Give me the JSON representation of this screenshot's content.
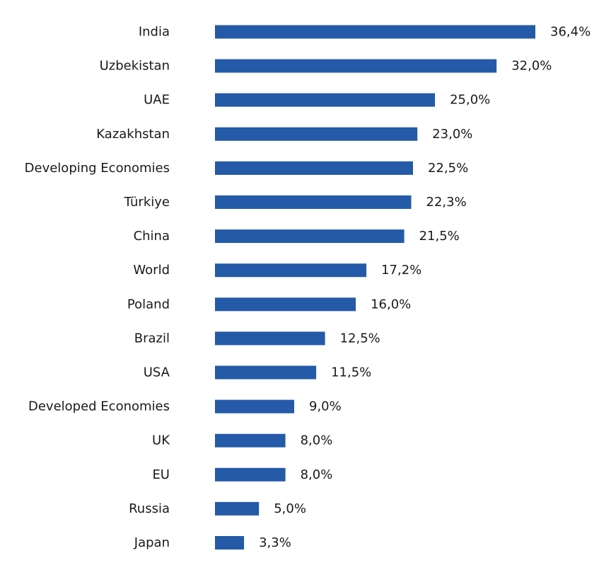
{
  "chart_data": {
    "type": "bar",
    "orientation": "horizontal",
    "title": "",
    "xlabel": "",
    "ylabel": "",
    "categories": [
      "India",
      "Uzbekistan",
      "UAE",
      "Kazakhstan",
      "Developing Economies",
      "Türkiye",
      "China",
      "World",
      "Poland",
      "Brazil",
      "USA",
      "Developed Economies",
      "UK",
      "EU",
      "Russia",
      "Japan"
    ],
    "values": [
      36.4,
      32.0,
      25.0,
      23.0,
      22.5,
      22.3,
      21.5,
      17.2,
      16.0,
      12.5,
      11.5,
      9.0,
      8.0,
      8.0,
      5.0,
      3.3
    ],
    "value_labels": [
      "36,4%",
      "32,0%",
      "25,0%",
      "23,0%",
      "22,5%",
      "22,3%",
      "21,5%",
      "17,2%",
      "16,0%",
      "12,5%",
      "11,5%",
      "9,0%",
      "8,0%",
      "8,0%",
      "5,0%",
      "3,3%"
    ],
    "xlim": [
      0,
      36.4
    ],
    "grid": false,
    "legend": "none",
    "bar_color": "#245AA7"
  }
}
